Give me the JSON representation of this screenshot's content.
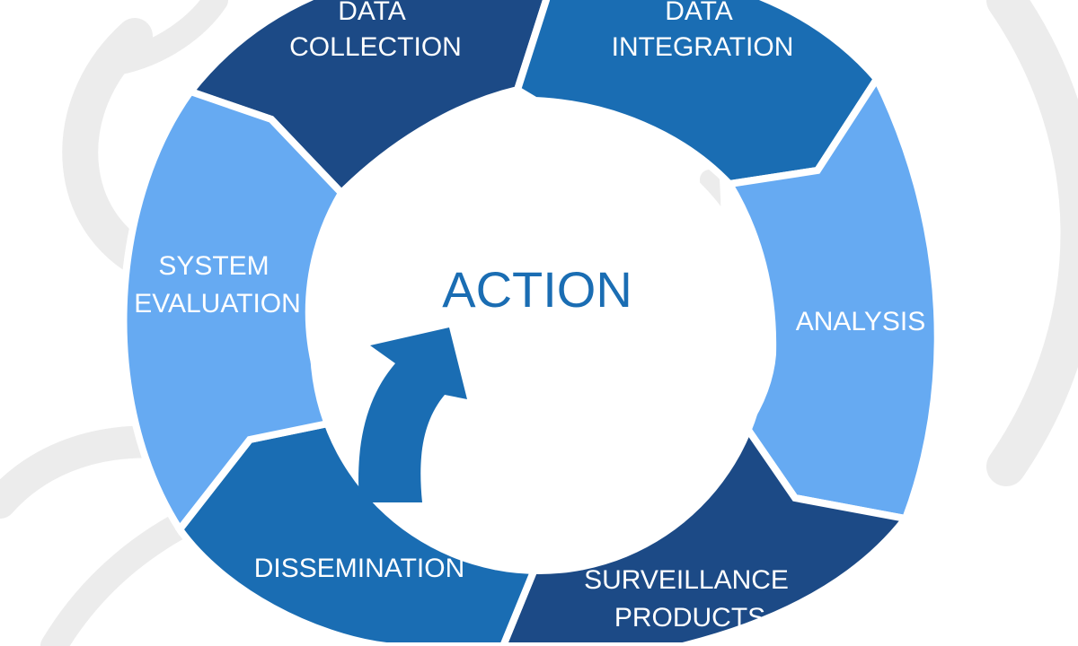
{
  "diagram": {
    "center_label": "ACTION",
    "segments": [
      {
        "id": "data-collection",
        "lines": [
          "DATA",
          "COLLECTION"
        ]
      },
      {
        "id": "data-integration",
        "lines": [
          "DATA",
          "INTEGRATION"
        ]
      },
      {
        "id": "analysis",
        "lines": [
          "ANALYSIS"
        ]
      },
      {
        "id": "surveillance-products",
        "lines": [
          "SURVEILLANCE",
          "PRODUCTS"
        ]
      },
      {
        "id": "dissemination",
        "lines": [
          "DISSEMINATION"
        ]
      },
      {
        "id": "system-evaluation",
        "lines": [
          "SYSTEM",
          "EVALUATION"
        ]
      }
    ]
  },
  "colors": {
    "dark_blue": "#1c4a86",
    "mid_blue": "#1a6db3",
    "light_blue": "#66aaf2",
    "center_text": "#1a6db3",
    "arrow": "#1a6db3",
    "watermark": "#ececec",
    "background": "#ffffff"
  }
}
